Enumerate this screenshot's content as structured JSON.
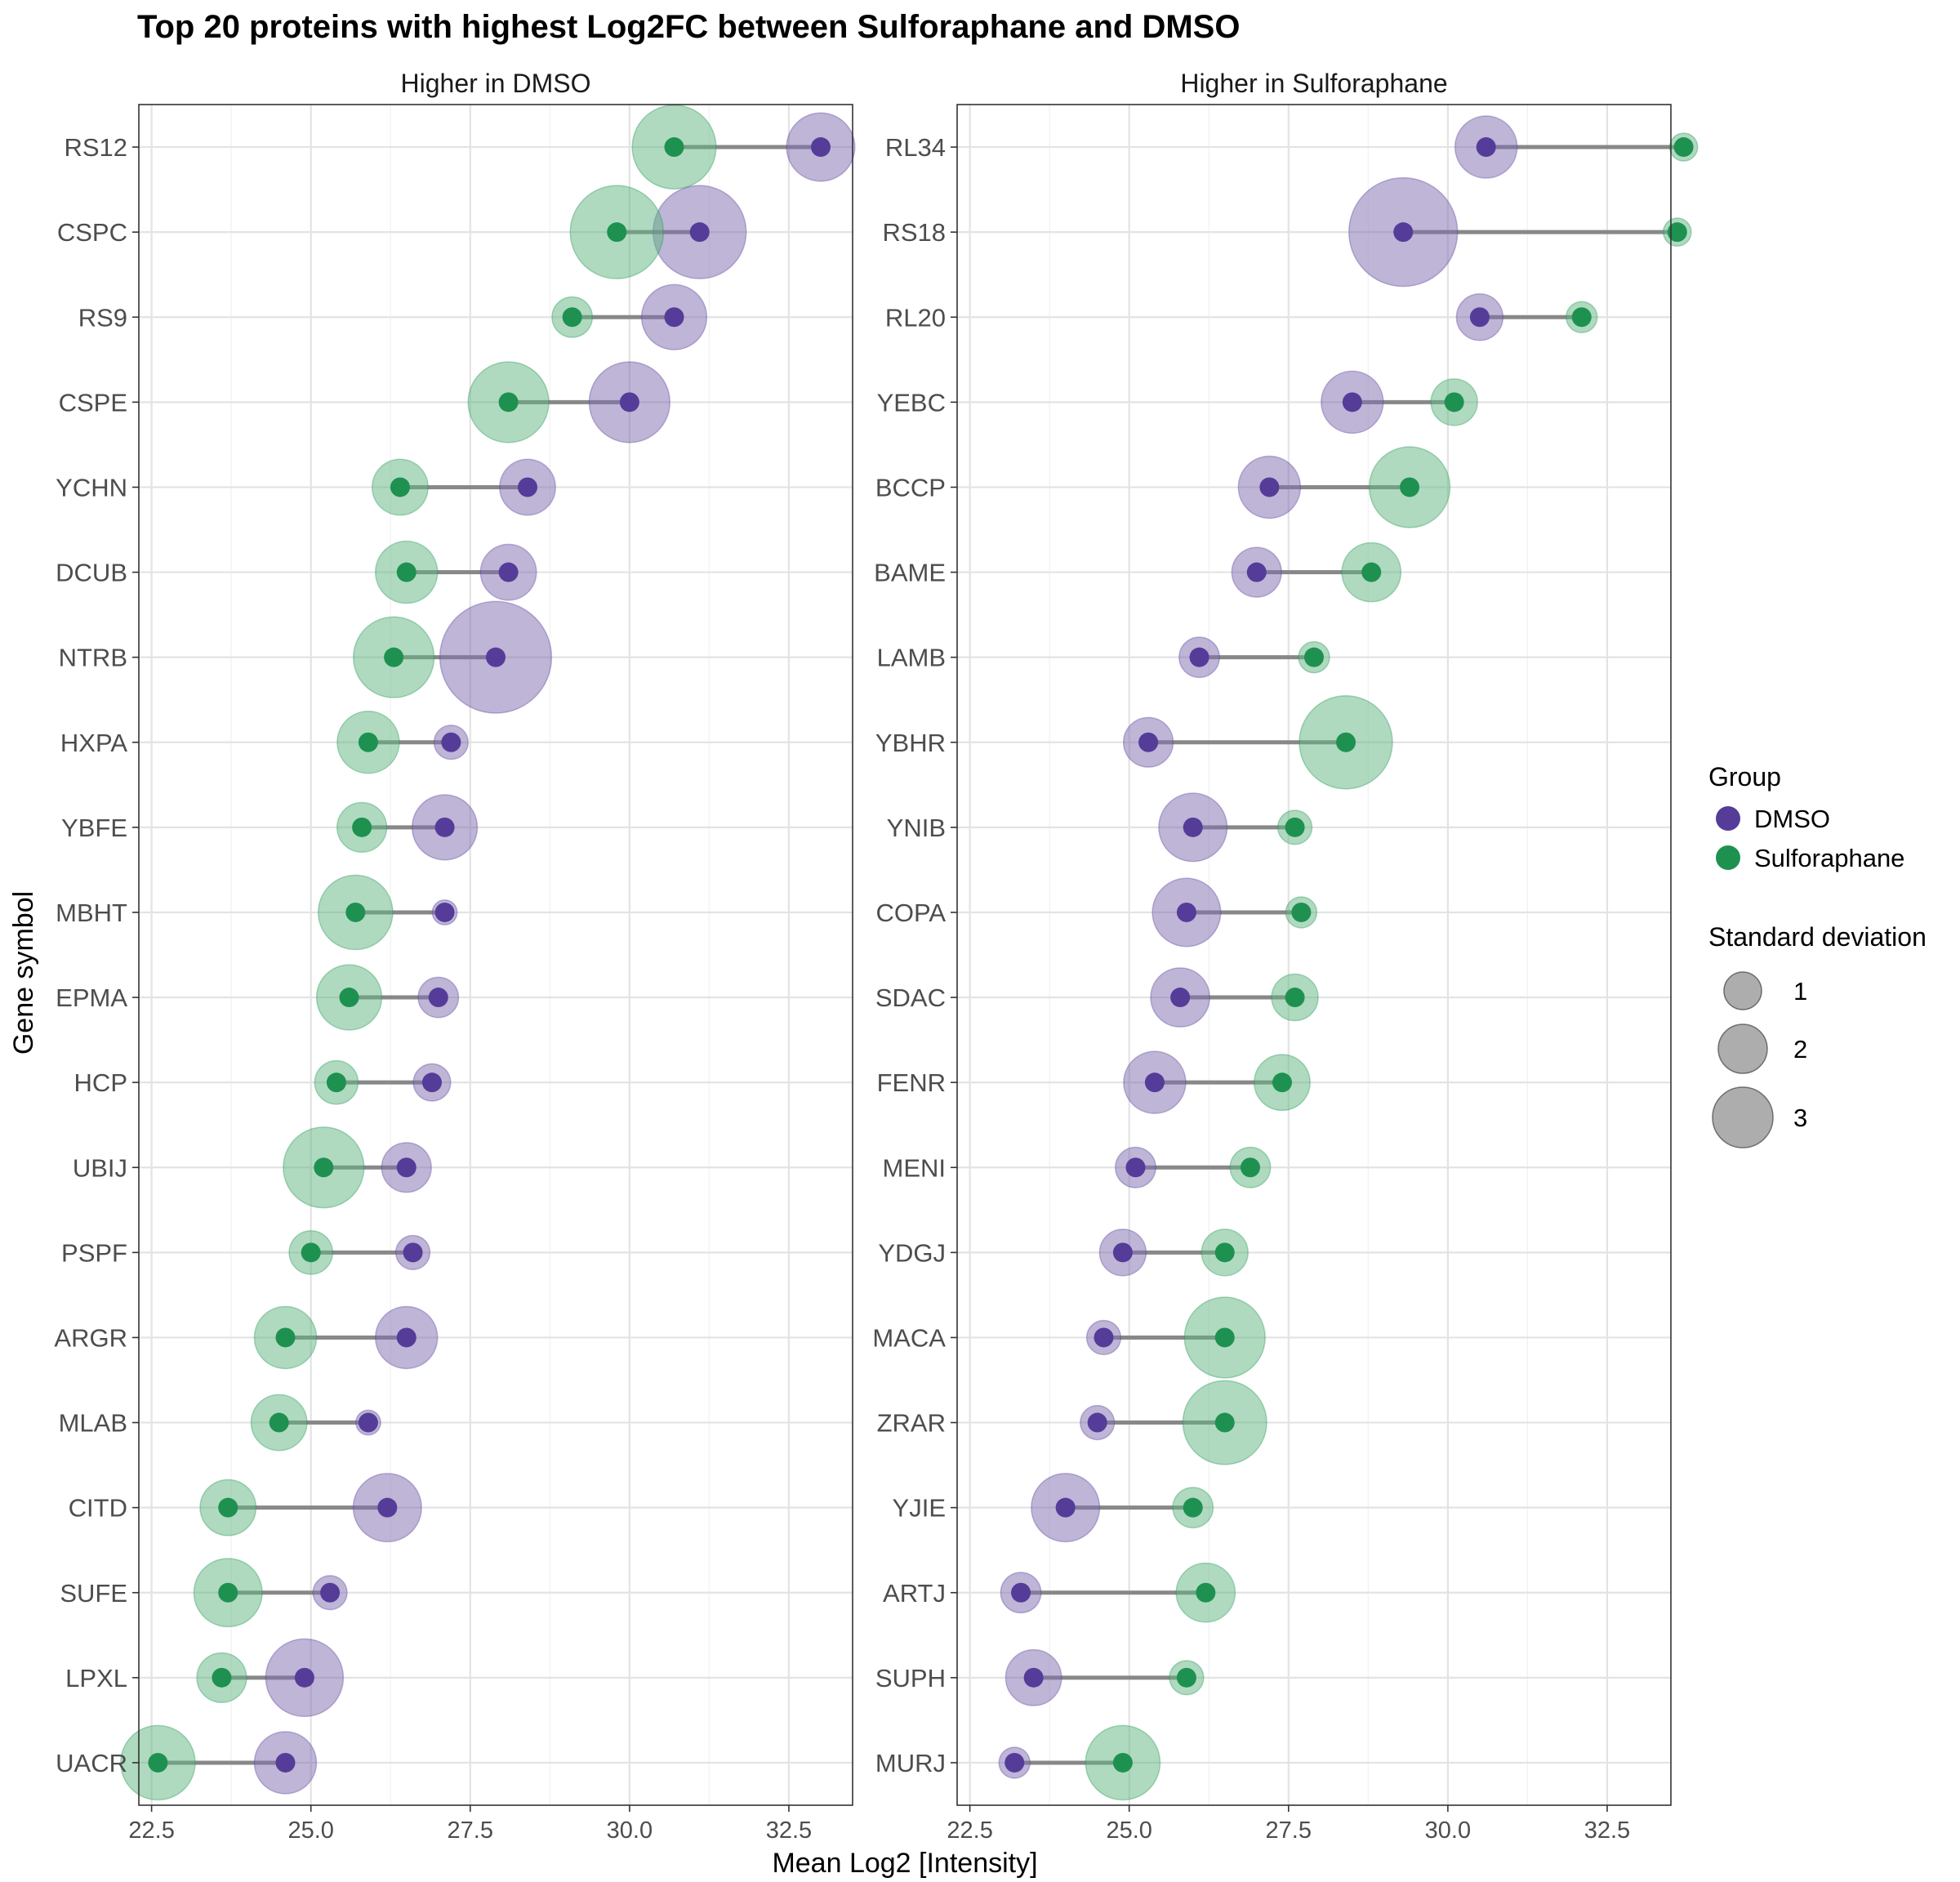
{
  "chart_data": {
    "type": "dumbbell",
    "title": "Top 20 proteins with highest Log2FC between Sulforaphane and DMSO",
    "xlabel": "Mean Log2 [Intensity]",
    "ylabel": "Gene symbol",
    "xlim": [
      22.3,
      33.5
    ],
    "x_ticks": [
      22.5,
      25.0,
      27.5,
      30.0,
      32.5
    ],
    "x_tick_labels": [
      "22.5",
      "25.0",
      "27.5",
      "30.0",
      "32.5"
    ],
    "grid": true,
    "legend_position": "right",
    "colors": {
      "DMSO": "#553c99",
      "Sulforaphane": "#1e9150",
      "DMSO_halo": "#7d6bb0",
      "Sulforaphane_halo": "#5fb57f",
      "segment": "#888888",
      "size_legend": "#999999"
    },
    "legend": {
      "group_title": "Group",
      "groups": [
        "DMSO",
        "Sulforaphane"
      ],
      "size_title": "Standard deviation",
      "sizes": [
        {
          "label": "1",
          "value": 1
        },
        {
          "label": "2",
          "value": 2
        },
        {
          "label": "3",
          "value": 3
        }
      ]
    },
    "panels": [
      {
        "name": "Higher in DMSO",
        "genes": [
          {
            "gene": "RS12",
            "dmso": 33.0,
            "dmso_sd": 2.2,
            "sulf": 30.7,
            "sulf_sd": 2.7
          },
          {
            "gene": "CSPC",
            "dmso": 31.1,
            "dmso_sd": 3.0,
            "sulf": 29.8,
            "sulf_sd": 3.0
          },
          {
            "gene": "RS9",
            "dmso": 30.7,
            "dmso_sd": 2.1,
            "sulf": 29.1,
            "sulf_sd": 1.3
          },
          {
            "gene": "CSPE",
            "dmso": 30.0,
            "dmso_sd": 2.6,
            "sulf": 28.1,
            "sulf_sd": 2.6
          },
          {
            "gene": "YCHN",
            "dmso": 28.4,
            "dmso_sd": 1.8,
            "sulf": 26.4,
            "sulf_sd": 1.8
          },
          {
            "gene": "DCUB",
            "dmso": 28.1,
            "dmso_sd": 1.8,
            "sulf": 26.5,
            "sulf_sd": 2.0
          },
          {
            "gene": "NTRB",
            "dmso": 27.9,
            "dmso_sd": 3.6,
            "sulf": 26.3,
            "sulf_sd": 2.6
          },
          {
            "gene": "HXPA",
            "dmso": 27.2,
            "dmso_sd": 1.1,
            "sulf": 25.9,
            "sulf_sd": 2.0
          },
          {
            "gene": "YBFE",
            "dmso": 27.1,
            "dmso_sd": 2.1,
            "sulf": 25.8,
            "sulf_sd": 1.6
          },
          {
            "gene": "MBHT",
            "dmso": 27.1,
            "dmso_sd": 0.8,
            "sulf": 25.7,
            "sulf_sd": 2.4
          },
          {
            "gene": "EPMA",
            "dmso": 27.0,
            "dmso_sd": 1.3,
            "sulf": 25.6,
            "sulf_sd": 2.1
          },
          {
            "gene": "HCP",
            "dmso": 26.9,
            "dmso_sd": 1.2,
            "sulf": 25.4,
            "sulf_sd": 1.4
          },
          {
            "gene": "UBIJ",
            "dmso": 26.5,
            "dmso_sd": 1.6,
            "sulf": 25.2,
            "sulf_sd": 2.6
          },
          {
            "gene": "PSPF",
            "dmso": 26.6,
            "dmso_sd": 1.1,
            "sulf": 25.0,
            "sulf_sd": 1.4
          },
          {
            "gene": "ARGR",
            "dmso": 26.5,
            "dmso_sd": 2.0,
            "sulf": 24.6,
            "sulf_sd": 2.0
          },
          {
            "gene": "MLAB",
            "dmso": 25.9,
            "dmso_sd": 0.8,
            "sulf": 24.5,
            "sulf_sd": 1.8
          },
          {
            "gene": "CITD",
            "dmso": 26.2,
            "dmso_sd": 2.2,
            "sulf": 23.7,
            "sulf_sd": 1.8
          },
          {
            "gene": "SUFE",
            "dmso": 25.3,
            "dmso_sd": 1.1,
            "sulf": 23.7,
            "sulf_sd": 2.2
          },
          {
            "gene": "LPXL",
            "dmso": 24.9,
            "dmso_sd": 2.5,
            "sulf": 23.6,
            "sulf_sd": 1.6
          },
          {
            "gene": "UACR",
            "dmso": 24.6,
            "dmso_sd": 2.0,
            "sulf": 22.6,
            "sulf_sd": 2.4
          }
        ]
      },
      {
        "name": "Higher in Sulforaphane",
        "genes": [
          {
            "gene": "RL34",
            "dmso": 30.6,
            "dmso_sd": 2.0,
            "sulf": 33.7,
            "sulf_sd": 0.9
          },
          {
            "gene": "RS18",
            "dmso": 29.3,
            "dmso_sd": 3.5,
            "sulf": 33.6,
            "sulf_sd": 0.9
          },
          {
            "gene": "RL20",
            "dmso": 30.5,
            "dmso_sd": 1.5,
            "sulf": 32.1,
            "sulf_sd": 1.0
          },
          {
            "gene": "YEBC",
            "dmso": 28.5,
            "dmso_sd": 2.0,
            "sulf": 30.1,
            "sulf_sd": 1.5
          },
          {
            "gene": "BCCP",
            "dmso": 27.2,
            "dmso_sd": 2.0,
            "sulf": 29.4,
            "sulf_sd": 2.6
          },
          {
            "gene": "BAME",
            "dmso": 27.0,
            "dmso_sd": 1.6,
            "sulf": 28.8,
            "sulf_sd": 1.9
          },
          {
            "gene": "LAMB",
            "dmso": 26.1,
            "dmso_sd": 1.3,
            "sulf": 27.9,
            "sulf_sd": 1.0
          },
          {
            "gene": "YBHR",
            "dmso": 25.3,
            "dmso_sd": 1.6,
            "sulf": 28.4,
            "sulf_sd": 3.0
          },
          {
            "gene": "YNIB",
            "dmso": 26.0,
            "dmso_sd": 2.2,
            "sulf": 27.6,
            "sulf_sd": 1.1
          },
          {
            "gene": "COPA",
            "dmso": 25.9,
            "dmso_sd": 2.2,
            "sulf": 27.7,
            "sulf_sd": 1.0
          },
          {
            "gene": "SDAC",
            "dmso": 25.8,
            "dmso_sd": 1.9,
            "sulf": 27.6,
            "sulf_sd": 1.5
          },
          {
            "gene": "FENR",
            "dmso": 25.4,
            "dmso_sd": 2.0,
            "sulf": 27.4,
            "sulf_sd": 1.8
          },
          {
            "gene": "MENI",
            "dmso": 25.1,
            "dmso_sd": 1.3,
            "sulf": 26.9,
            "sulf_sd": 1.3
          },
          {
            "gene": "YDGJ",
            "dmso": 24.9,
            "dmso_sd": 1.5,
            "sulf": 26.5,
            "sulf_sd": 1.5
          },
          {
            "gene": "MACA",
            "dmso": 24.6,
            "dmso_sd": 1.1,
            "sulf": 26.5,
            "sulf_sd": 2.6
          },
          {
            "gene": "ZRAR",
            "dmso": 24.5,
            "dmso_sd": 1.1,
            "sulf": 26.5,
            "sulf_sd": 2.7
          },
          {
            "gene": "YJIE",
            "dmso": 24.0,
            "dmso_sd": 2.2,
            "sulf": 26.0,
            "sulf_sd": 1.3
          },
          {
            "gene": "ARTJ",
            "dmso": 23.3,
            "dmso_sd": 1.3,
            "sulf": 26.2,
            "sulf_sd": 1.9
          },
          {
            "gene": "SUPH",
            "dmso": 23.5,
            "dmso_sd": 1.8,
            "sulf": 25.9,
            "sulf_sd": 1.1
          },
          {
            "gene": "MURJ",
            "dmso": 23.2,
            "dmso_sd": 1.0,
            "sulf": 24.9,
            "sulf_sd": 2.4
          }
        ]
      }
    ]
  }
}
